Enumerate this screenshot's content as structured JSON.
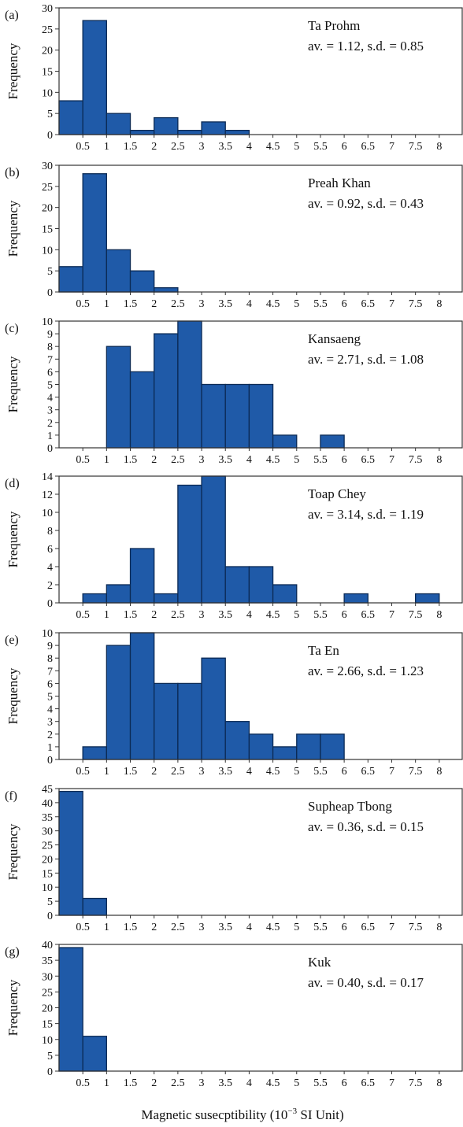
{
  "xlabel_prefix": "Magnetic susecptibility (10",
  "xlabel_exp": "−3",
  "xlabel_suffix": " SI Unit)",
  "ylabel": "Frequency",
  "colors": {
    "bar": "#1f5aa8",
    "bar_edge": "#0b2a55",
    "axis": "#333333"
  },
  "chart_data": [
    {
      "type": "bar",
      "panel": "(a)",
      "title": "Ta Prohm",
      "stats": "av. = 1.12, s.d. = 0.85",
      "ylim": [
        0,
        30
      ],
      "yticks": [
        0,
        5,
        10,
        15,
        20,
        25,
        30
      ],
      "xlim": [
        0,
        8.5
      ],
      "xticks": [
        0.5,
        1,
        1.5,
        2,
        2.5,
        3,
        3.5,
        4,
        4.5,
        5,
        5.5,
        6,
        6.5,
        7,
        7.5,
        8
      ],
      "bin_width": 0.5,
      "bins": [
        0,
        0.5,
        1,
        1.5,
        2,
        2.5,
        3,
        3.5
      ],
      "values": [
        8,
        27,
        5,
        1,
        4,
        1,
        3,
        1
      ]
    },
    {
      "type": "bar",
      "panel": "(b)",
      "title": "Preah Khan",
      "stats": "av. = 0.92, s.d. = 0.43",
      "ylim": [
        0,
        30
      ],
      "yticks": [
        0,
        5,
        10,
        15,
        20,
        25,
        30
      ],
      "xlim": [
        0,
        8.5
      ],
      "xticks": [
        0.5,
        1,
        1.5,
        2,
        2.5,
        3,
        3.5,
        4,
        4.5,
        5,
        5.5,
        6,
        6.5,
        7,
        7.5,
        8
      ],
      "bin_width": 0.5,
      "bins": [
        0,
        0.5,
        1,
        1.5,
        2
      ],
      "values": [
        6,
        28,
        10,
        5,
        1
      ]
    },
    {
      "type": "bar",
      "panel": "(c)",
      "title": "Kansaeng",
      "stats": "av. = 2.71, s.d. = 1.08",
      "ylim": [
        0,
        10
      ],
      "yticks": [
        0,
        1,
        2,
        3,
        4,
        5,
        6,
        7,
        8,
        9,
        10
      ],
      "xlim": [
        0,
        8.5
      ],
      "xticks": [
        0.5,
        1,
        1.5,
        2,
        2.5,
        3,
        3.5,
        4,
        4.5,
        5,
        5.5,
        6,
        6.5,
        7,
        7.5,
        8
      ],
      "bin_width": 0.5,
      "bins": [
        1,
        1.5,
        2,
        2.5,
        3,
        3.5,
        4,
        4.5,
        5.5
      ],
      "values": [
        8,
        6,
        9,
        10,
        5,
        5,
        5,
        1,
        1
      ]
    },
    {
      "type": "bar",
      "panel": "(d)",
      "title": "Toap Chey",
      "stats": "av. = 3.14, s.d. = 1.19",
      "ylim": [
        0,
        14
      ],
      "yticks": [
        0,
        2,
        4,
        6,
        8,
        10,
        12,
        14
      ],
      "xlim": [
        0,
        8.5
      ],
      "xticks": [
        0.5,
        1,
        1.5,
        2,
        2.5,
        3,
        3.5,
        4,
        4.5,
        5,
        5.5,
        6,
        6.5,
        7,
        7.5,
        8
      ],
      "bin_width": 0.5,
      "bins": [
        0.5,
        1,
        1.5,
        2,
        2.5,
        3,
        3.5,
        4,
        4.5,
        6,
        7.5
      ],
      "values": [
        1,
        2,
        6,
        1,
        13,
        14,
        4,
        4,
        2,
        1,
        1
      ]
    },
    {
      "type": "bar",
      "panel": "(e)",
      "title": "Ta En",
      "stats": "av. = 2.66, s.d. = 1.23",
      "ylim": [
        0,
        10
      ],
      "yticks": [
        0,
        1,
        2,
        3,
        4,
        5,
        6,
        7,
        8,
        9,
        10
      ],
      "xlim": [
        0,
        8.5
      ],
      "xticks": [
        0.5,
        1,
        1.5,
        2,
        2.5,
        3,
        3.5,
        4,
        4.5,
        5,
        5.5,
        6,
        6.5,
        7,
        7.5,
        8
      ],
      "bin_width": 0.5,
      "bins": [
        0.5,
        1,
        1.5,
        2,
        2.5,
        3,
        3.5,
        4,
        4.5,
        5,
        5.5
      ],
      "values": [
        1,
        9,
        10,
        6,
        6,
        8,
        3,
        2,
        1,
        2,
        2
      ]
    },
    {
      "type": "bar",
      "panel": "(f)",
      "title": "Supheap Tbong",
      "stats": "av. = 0.36, s.d. = 0.15",
      "ylim": [
        0,
        45
      ],
      "yticks": [
        0,
        5,
        10,
        15,
        20,
        25,
        30,
        35,
        40,
        45
      ],
      "xlim": [
        0,
        8.5
      ],
      "xticks": [
        0.5,
        1,
        1.5,
        2,
        2.5,
        3,
        3.5,
        4,
        4.5,
        5,
        5.5,
        6,
        6.5,
        7,
        7.5,
        8
      ],
      "bin_width": 0.5,
      "bins": [
        0,
        0.5
      ],
      "values": [
        44,
        6
      ]
    },
    {
      "type": "bar",
      "panel": "(g)",
      "title": "Kuk",
      "stats": "av. = 0.40, s.d. = 0.17",
      "ylim": [
        0,
        40
      ],
      "yticks": [
        0,
        5,
        10,
        15,
        20,
        25,
        30,
        35,
        40
      ],
      "xlim": [
        0,
        8.5
      ],
      "xticks": [
        0.5,
        1,
        1.5,
        2,
        2.5,
        3,
        3.5,
        4,
        4.5,
        5,
        5.5,
        6,
        6.5,
        7,
        7.5,
        8
      ],
      "bin_width": 0.5,
      "bins": [
        0,
        0.5
      ],
      "values": [
        39,
        11
      ]
    }
  ]
}
